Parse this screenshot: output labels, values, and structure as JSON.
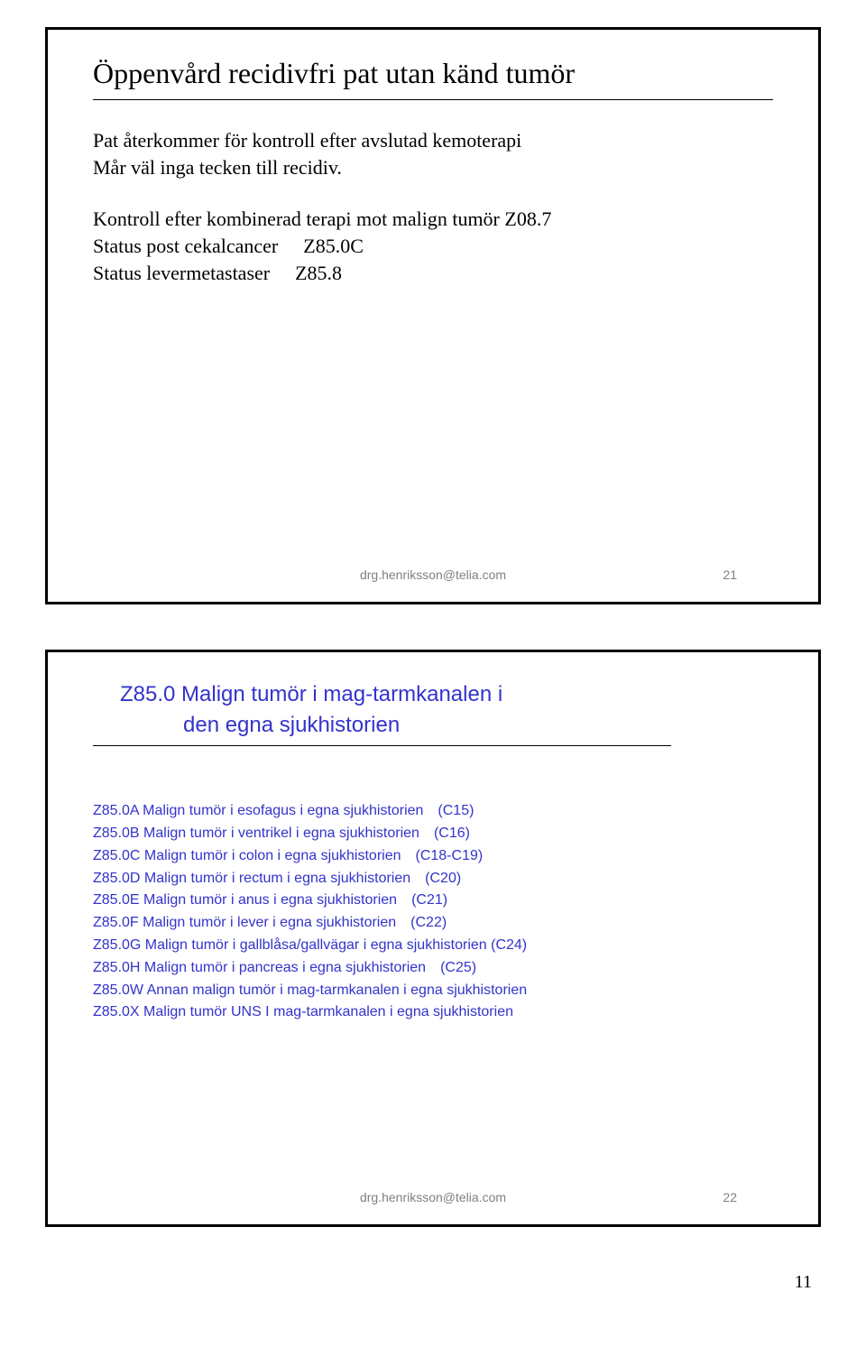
{
  "slide1": {
    "title": "Öppenvård recidivfri pat utan känd tumör",
    "para1_line1": "Pat återkommer för kontroll efter avslutad kemoterapi",
    "para1_line2": "Mår väl inga tecken till recidiv.",
    "row1_desc": "Kontroll efter kombinerad terapi mot malign tumör Z08.7",
    "row2_desc": "Status post cekalcancer",
    "row2_code": "Z85.0C",
    "row3_desc": "Status levermetastaser",
    "row3_code": "Z85.8",
    "footer_email": "drg.henriksson@telia.com",
    "footer_page": "21"
  },
  "slide2": {
    "title_line1": "Z85.0 Malign tumör i mag-tarmkanalen i",
    "title_line2": "den egna sjukhistorien",
    "items": [
      {
        "desc": "Z85.0A Malign tumör i esofagus i egna sjukhistorien",
        "tag": "(C15)"
      },
      {
        "desc": "Z85.0B Malign tumör i ventrikel i egna sjukhistorien",
        "tag": "(C16)"
      },
      {
        "desc": "Z85.0C Malign tumör i colon i egna sjukhistorien",
        "tag": "(C18-C19)"
      },
      {
        "desc": "Z85.0D Malign tumör i rectum i egna sjukhistorien",
        "tag": "(C20)"
      },
      {
        "desc": "Z85.0E Malign tumör i anus i egna sjukhistorien",
        "tag": "(C21)"
      },
      {
        "desc": "Z85.0F Malign tumör i lever i egna sjukhistorien",
        "tag": "(C22)"
      },
      {
        "desc": "Z85.0G Malign tumör i gallblåsa/gallvägar i egna sjukhistorien (C24)",
        "tag": ""
      },
      {
        "desc": "Z85.0H Malign tumör i pancreas i egna sjukhistorien",
        "tag": "(C25)"
      },
      {
        "desc": "Z85.0W Annan malign tumör i mag-tarmkanalen i egna sjukhistorien",
        "tag": ""
      },
      {
        "desc": "Z85.0X Malign tumör UNS I mag-tarmkanalen i egna sjukhistorien",
        "tag": ""
      }
    ],
    "footer_email": "drg.henriksson@telia.com",
    "footer_page": "22"
  },
  "page_number": "11"
}
